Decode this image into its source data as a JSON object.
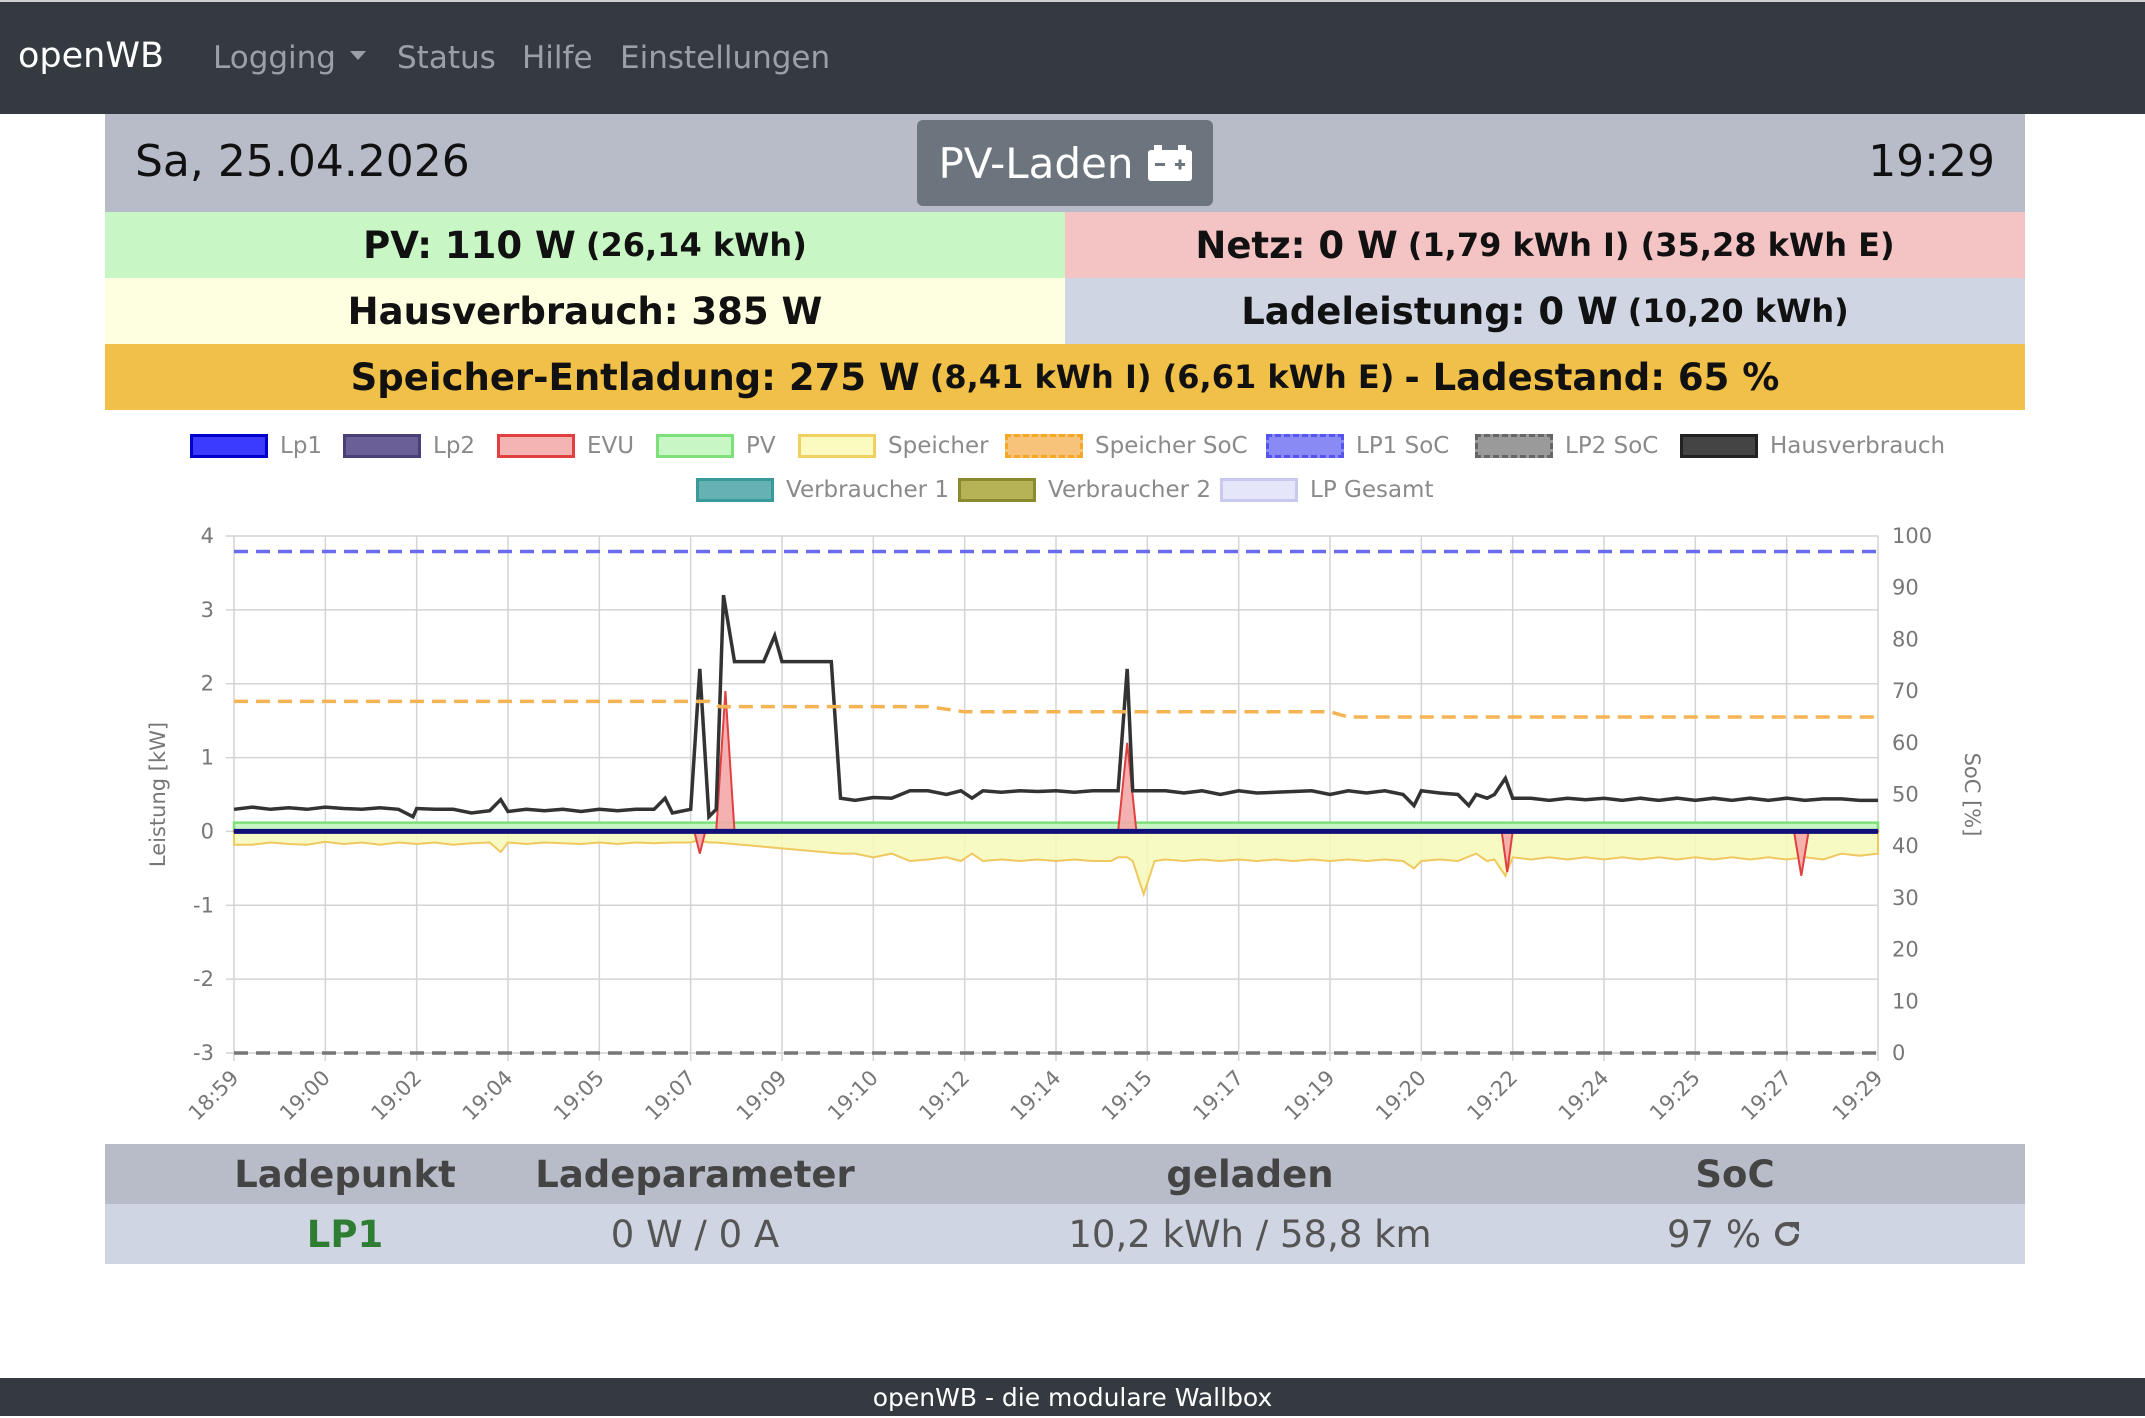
{
  "nav": {
    "brand": "openWB",
    "items": [
      {
        "label": "Logging",
        "dropdown": true
      },
      {
        "label": "Status"
      },
      {
        "label": "Hilfe"
      },
      {
        "label": "Einstellungen"
      }
    ]
  },
  "header": {
    "date": "Sa, 25.04.2026",
    "mode_label": "PV-Laden",
    "mode_icon": "car-battery-icon",
    "time": "19:29"
  },
  "stats": {
    "pv": {
      "main": "PV: 110 W",
      "sub": "(26,14 kWh)",
      "color": "#c8f7c5"
    },
    "netz": {
      "main": "Netz: 0 W",
      "sub": "(1,79 kWh I) (35,28 kWh E)",
      "color": "#f4c4c4"
    },
    "haus": {
      "main": "Hausverbrauch: 385 W",
      "color": "#fefee0"
    },
    "lade": {
      "main": "Ladeleistung: 0 W",
      "sub": "(10,20 kWh)",
      "color": "#d0d5e3"
    },
    "speicher": {
      "main1": "Speicher-Entladung: 275 W",
      "sub": "(8,41 kWh I) (6,61 kWh E)",
      "main2": "- Ladestand: 65 %",
      "color": "#f0c048"
    }
  },
  "chart_data": {
    "type": "line",
    "legend": [
      {
        "name": "Lp1",
        "fill": "#3b3bff",
        "stroke": "#0000cc",
        "dashed": false
      },
      {
        "name": "Lp2",
        "fill": "#6a5f96",
        "stroke": "#4a3f76",
        "dashed": false
      },
      {
        "name": "EVU",
        "fill": "#f4b4b4",
        "stroke": "#e04040",
        "dashed": false
      },
      {
        "name": "PV",
        "fill": "#c8f7c5",
        "stroke": "#7de07a",
        "dashed": false
      },
      {
        "name": "Speicher",
        "fill": "#fbfbc0",
        "stroke": "#f0d060",
        "dashed": false
      },
      {
        "name": "Speicher SoC",
        "fill": "#f7c27a",
        "stroke": "#f5a623",
        "dashed": true
      },
      {
        "name": "LP1 SoC",
        "fill": "#8a8af5",
        "stroke": "#5555ee",
        "dashed": true
      },
      {
        "name": "LP2 SoC",
        "fill": "#9a9a9a",
        "stroke": "#666666",
        "dashed": true
      },
      {
        "name": "Hausverbrauch",
        "fill": "#444444",
        "stroke": "#222222",
        "dashed": false
      },
      {
        "name": "Verbraucher 1",
        "fill": "#66b2b2",
        "stroke": "#3a9a9a",
        "dashed": false
      },
      {
        "name": "Verbraucher 2",
        "fill": "#b5b355",
        "stroke": "#8a8a30",
        "dashed": false
      },
      {
        "name": "LP Gesamt",
        "fill": "#e6e6fa",
        "stroke": "#c8c8f0",
        "dashed": false
      }
    ],
    "x_labels": [
      "18:59",
      "19:00",
      "19:02",
      "19:04",
      "19:05",
      "19:07",
      "19:09",
      "19:10",
      "19:12",
      "19:14",
      "19:15",
      "19:17",
      "19:19",
      "19:20",
      "19:22",
      "19:24",
      "19:25",
      "19:27",
      "19:29"
    ],
    "y_left": {
      "label": "Leistung [kW]",
      "min": -3,
      "max": 4,
      "ticks": [
        4,
        3,
        2,
        1,
        0,
        -1,
        -2,
        -3
      ]
    },
    "y_right": {
      "label": "SoC [%]",
      "min": 0,
      "max": 100,
      "ticks": [
        100,
        90,
        80,
        70,
        60,
        50,
        40,
        30,
        20,
        10,
        0
      ]
    },
    "x_range_min": [
      0,
      30
    ],
    "series": [
      {
        "name": "Hausverbrauch",
        "points": [
          [
            0,
            0.3
          ],
          [
            0.5,
            0.33
          ],
          [
            1,
            0.3
          ],
          [
            1.5,
            0.32
          ],
          [
            2,
            0.3
          ],
          [
            2.5,
            0.33
          ],
          [
            3,
            0.31
          ],
          [
            3.5,
            0.3
          ],
          [
            4,
            0.32
          ],
          [
            4.5,
            0.3
          ],
          [
            4.9,
            0.2
          ],
          [
            5,
            0.31
          ],
          [
            5.5,
            0.3
          ],
          [
            6,
            0.3
          ],
          [
            6.5,
            0.25
          ],
          [
            7,
            0.28
          ],
          [
            7.3,
            0.43
          ],
          [
            7.5,
            0.27
          ],
          [
            8,
            0.3
          ],
          [
            8.5,
            0.28
          ],
          [
            9,
            0.3
          ],
          [
            9.5,
            0.27
          ],
          [
            10,
            0.3
          ],
          [
            10.5,
            0.28
          ],
          [
            11,
            0.3
          ],
          [
            11.5,
            0.3
          ],
          [
            11.8,
            0.45
          ],
          [
            12,
            0.25
          ],
          [
            12.5,
            0.3
          ],
          [
            12.75,
            2.2
          ],
          [
            13,
            0.2
          ],
          [
            13.2,
            0.3
          ],
          [
            13.4,
            3.2
          ],
          [
            13.7,
            2.3
          ],
          [
            14,
            2.3
          ],
          [
            14.5,
            2.3
          ],
          [
            14.8,
            2.65
          ],
          [
            15,
            2.3
          ],
          [
            15.5,
            2.3
          ],
          [
            16,
            2.3
          ],
          [
            16.35,
            2.3
          ],
          [
            16.6,
            0.45
          ],
          [
            17,
            0.42
          ],
          [
            17.5,
            0.46
          ],
          [
            18,
            0.45
          ],
          [
            18.5,
            0.55
          ],
          [
            19,
            0.55
          ],
          [
            19.5,
            0.5
          ],
          [
            19.9,
            0.55
          ],
          [
            20.2,
            0.45
          ],
          [
            20.5,
            0.55
          ],
          [
            21,
            0.53
          ],
          [
            21.5,
            0.55
          ],
          [
            22,
            0.54
          ],
          [
            22.5,
            0.55
          ],
          [
            23,
            0.53
          ],
          [
            23.5,
            0.55
          ],
          [
            23.85,
            0.55
          ],
          [
            24,
            0.55
          ],
          [
            24.2,
            0.55
          ],
          [
            24.45,
            2.2
          ],
          [
            24.6,
            0.55
          ],
          [
            25,
            0.55
          ],
          [
            25.5,
            0.55
          ],
          [
            26,
            0.52
          ],
          [
            26.5,
            0.55
          ],
          [
            27,
            0.5
          ],
          [
            27.5,
            0.55
          ],
          [
            28,
            0.52
          ],
          [
            28.5,
            0.53
          ],
          [
            29,
            0.54
          ],
          [
            29.5,
            0.55
          ],
          [
            30,
            0.5
          ],
          [
            30.5,
            0.55
          ],
          [
            31,
            0.52
          ],
          [
            31.5,
            0.55
          ],
          [
            32,
            0.5
          ],
          [
            32.3,
            0.35
          ],
          [
            32.5,
            0.55
          ],
          [
            33,
            0.52
          ],
          [
            33.5,
            0.5
          ],
          [
            33.8,
            0.35
          ],
          [
            34,
            0.5
          ],
          [
            34.3,
            0.45
          ],
          [
            34.5,
            0.5
          ],
          [
            34.8,
            0.72
          ],
          [
            35,
            0.45
          ],
          [
            35.5,
            0.45
          ],
          [
            36,
            0.42
          ],
          [
            36.5,
            0.45
          ],
          [
            37,
            0.43
          ],
          [
            37.5,
            0.45
          ],
          [
            38,
            0.42
          ],
          [
            38.5,
            0.45
          ],
          [
            39,
            0.42
          ],
          [
            39.5,
            0.45
          ],
          [
            40,
            0.42
          ],
          [
            40.5,
            0.45
          ],
          [
            41,
            0.42
          ],
          [
            41.5,
            0.45
          ],
          [
            42,
            0.42
          ],
          [
            42.5,
            0.45
          ],
          [
            43,
            0.42
          ],
          [
            43.5,
            0.44
          ],
          [
            44,
            0.44
          ],
          [
            44.5,
            0.42
          ],
          [
            45,
            0.42
          ]
        ]
      },
      {
        "name": "Speicher",
        "points": [
          [
            0,
            -0.18
          ],
          [
            0.5,
            -0.18
          ],
          [
            1,
            -0.15
          ],
          [
            1.5,
            -0.17
          ],
          [
            2,
            -0.18
          ],
          [
            2.5,
            -0.14
          ],
          [
            3,
            -0.17
          ],
          [
            3.5,
            -0.15
          ],
          [
            4,
            -0.18
          ],
          [
            4.5,
            -0.15
          ],
          [
            5,
            -0.17
          ],
          [
            5.5,
            -0.15
          ],
          [
            6,
            -0.18
          ],
          [
            6.5,
            -0.16
          ],
          [
            7,
            -0.15
          ],
          [
            7.3,
            -0.28
          ],
          [
            7.5,
            -0.15
          ],
          [
            8,
            -0.17
          ],
          [
            8.5,
            -0.15
          ],
          [
            9,
            -0.16
          ],
          [
            9.5,
            -0.17
          ],
          [
            10,
            -0.15
          ],
          [
            10.5,
            -0.17
          ],
          [
            11,
            -0.15
          ],
          [
            11.5,
            -0.16
          ],
          [
            12,
            -0.15
          ],
          [
            12.5,
            -0.15
          ],
          [
            12.7,
            -0.12
          ],
          [
            13,
            -0.15
          ],
          [
            13.2,
            -0.15
          ],
          [
            16.6,
            -0.3
          ],
          [
            17,
            -0.3
          ],
          [
            17.5,
            -0.35
          ],
          [
            18,
            -0.3
          ],
          [
            18.5,
            -0.4
          ],
          [
            19,
            -0.38
          ],
          [
            19.5,
            -0.35
          ],
          [
            19.9,
            -0.4
          ],
          [
            20.2,
            -0.3
          ],
          [
            20.5,
            -0.4
          ],
          [
            21,
            -0.38
          ],
          [
            21.5,
            -0.4
          ],
          [
            22,
            -0.38
          ],
          [
            22.5,
            -0.4
          ],
          [
            23,
            -0.38
          ],
          [
            23.5,
            -0.4
          ],
          [
            24,
            -0.4
          ],
          [
            24.2,
            -0.35
          ],
          [
            24.45,
            -0.35
          ],
          [
            24.6,
            -0.4
          ],
          [
            24.9,
            -0.85
          ],
          [
            25.2,
            -0.4
          ],
          [
            25.5,
            -0.38
          ],
          [
            26,
            -0.4
          ],
          [
            26.5,
            -0.38
          ],
          [
            27,
            -0.4
          ],
          [
            27.5,
            -0.38
          ],
          [
            28,
            -0.4
          ],
          [
            28.5,
            -0.38
          ],
          [
            29,
            -0.4
          ],
          [
            29.5,
            -0.38
          ],
          [
            30,
            -0.4
          ],
          [
            30.5,
            -0.38
          ],
          [
            31,
            -0.4
          ],
          [
            31.5,
            -0.38
          ],
          [
            32,
            -0.4
          ],
          [
            32.3,
            -0.5
          ],
          [
            32.5,
            -0.4
          ],
          [
            33,
            -0.38
          ],
          [
            33.5,
            -0.4
          ],
          [
            34,
            -0.3
          ],
          [
            34.3,
            -0.4
          ],
          [
            34.5,
            -0.38
          ],
          [
            34.8,
            -0.6
          ],
          [
            35,
            -0.35
          ],
          [
            35.5,
            -0.38
          ],
          [
            36,
            -0.35
          ],
          [
            36.5,
            -0.38
          ],
          [
            37,
            -0.35
          ],
          [
            37.5,
            -0.38
          ],
          [
            38,
            -0.35
          ],
          [
            38.5,
            -0.38
          ],
          [
            39,
            -0.35
          ],
          [
            39.5,
            -0.38
          ],
          [
            40,
            -0.35
          ],
          [
            40.5,
            -0.38
          ],
          [
            41,
            -0.35
          ],
          [
            41.5,
            -0.38
          ],
          [
            42,
            -0.35
          ],
          [
            42.5,
            -0.38
          ],
          [
            43,
            -0.35
          ],
          [
            43.5,
            -0.38
          ],
          [
            44,
            -0.3
          ],
          [
            44.5,
            -0.33
          ],
          [
            45,
            -0.3
          ]
        ]
      },
      {
        "name": "EVU",
        "points": [
          [
            0,
            0
          ],
          [
            12.6,
            0
          ],
          [
            12.75,
            -0.3
          ],
          [
            12.9,
            0
          ],
          [
            13.2,
            0
          ],
          [
            13.45,
            1.9
          ],
          [
            13.7,
            0
          ],
          [
            24.2,
            0
          ],
          [
            24.45,
            1.2
          ],
          [
            24.7,
            0
          ],
          [
            34.7,
            0
          ],
          [
            34.85,
            -0.55
          ],
          [
            35,
            0
          ],
          [
            42.7,
            0
          ],
          [
            42.9,
            -0.6
          ],
          [
            43.1,
            0
          ],
          [
            45,
            0
          ]
        ]
      },
      {
        "name": "PV",
        "points": [
          [
            0,
            0.12
          ],
          [
            45,
            0.12
          ]
        ]
      },
      {
        "name": "Lp1",
        "points": [
          [
            0,
            0
          ],
          [
            45,
            0
          ]
        ]
      },
      {
        "name": "Speicher SoC",
        "points": [
          [
            0,
            68
          ],
          [
            13,
            68
          ],
          [
            13.3,
            67
          ],
          [
            19,
            67
          ],
          [
            20,
            66
          ],
          [
            30,
            66
          ],
          [
            30.5,
            65
          ],
          [
            45,
            65
          ]
        ]
      },
      {
        "name": "LP1 SoC",
        "points": [
          [
            0,
            97
          ],
          [
            45,
            97
          ]
        ]
      },
      {
        "name": "LP2 SoC",
        "points": [
          [
            0,
            0
          ],
          [
            45,
            0
          ]
        ]
      }
    ]
  },
  "table": {
    "headers": [
      "Ladepunkt",
      "Ladeparameter",
      "geladen",
      "SoC"
    ],
    "row": {
      "name": "LP1",
      "name_color": "#2e7d32",
      "params": "0 W / 0 A",
      "charged": "10,2 kWh / 58,8 km",
      "soc": "97 %",
      "soc_icon": "refresh-icon"
    }
  },
  "footer": {
    "text": "openWB - die modulare Wallbox"
  }
}
